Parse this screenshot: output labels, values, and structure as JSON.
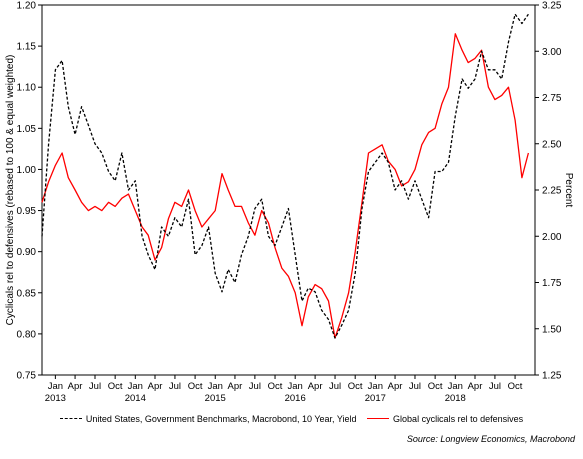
{
  "chart_data": {
    "type": "line",
    "left_axis": {
      "label": "Cyclicals rel to defensives (rebased to 100 & equal weighted)",
      "ylim": [
        0.75,
        1.2
      ],
      "ticks": [
        "0.75",
        "0.80",
        "0.85",
        "0.90",
        "0.95",
        "1.00",
        "1.05",
        "1.10",
        "1.15",
        "1.20"
      ]
    },
    "right_axis": {
      "label": "Percent",
      "ylim": [
        1.25,
        3.25
      ],
      "ticks": [
        "1.25",
        "1.50",
        "1.75",
        "2.00",
        "2.25",
        "2.50",
        "2.75",
        "3.00",
        "3.25"
      ]
    },
    "x_axis": {
      "range": [
        "2012-11-01",
        "2018-12-31"
      ],
      "month_ticks": [
        {
          "label": "Jan",
          "date": "2013-01-01",
          "year": "2013"
        },
        {
          "label": "Apr",
          "date": "2013-04-01"
        },
        {
          "label": "Jul",
          "date": "2013-07-01"
        },
        {
          "label": "Oct",
          "date": "2013-10-01"
        },
        {
          "label": "Jan",
          "date": "2014-01-01",
          "year": "2014"
        },
        {
          "label": "Apr",
          "date": "2014-04-01"
        },
        {
          "label": "Jul",
          "date": "2014-07-01"
        },
        {
          "label": "Oct",
          "date": "2014-10-01"
        },
        {
          "label": "Jan",
          "date": "2015-01-01",
          "year": "2015"
        },
        {
          "label": "Apr",
          "date": "2015-04-01"
        },
        {
          "label": "Jul",
          "date": "2015-07-01"
        },
        {
          "label": "Oct",
          "date": "2015-10-01"
        },
        {
          "label": "Jan",
          "date": "2016-01-01",
          "year": "2016"
        },
        {
          "label": "Apr",
          "date": "2016-04-01"
        },
        {
          "label": "Jul",
          "date": "2016-07-01"
        },
        {
          "label": "Oct",
          "date": "2016-10-01"
        },
        {
          "label": "Jan",
          "date": "2017-01-01",
          "year": "2017"
        },
        {
          "label": "Apr",
          "date": "2017-04-01"
        },
        {
          "label": "Jul",
          "date": "2017-07-01"
        },
        {
          "label": "Oct",
          "date": "2017-10-01"
        },
        {
          "label": "Jan",
          "date": "2018-01-01",
          "year": "2018"
        },
        {
          "label": "Apr",
          "date": "2018-04-01"
        },
        {
          "label": "Jul",
          "date": "2018-07-01"
        },
        {
          "label": "Oct",
          "date": "2018-10-01"
        }
      ]
    },
    "series": [
      {
        "name": "United States, Government Benchmarks, Macrobond, 10 Year, Yield",
        "axis": "right",
        "color": "#000000",
        "style": "dashed",
        "points": [
          [
            "2012-11-01",
            2.0
          ],
          [
            "2012-12-01",
            2.5
          ],
          [
            "2013-01-01",
            2.9
          ],
          [
            "2013-02-01",
            2.95
          ],
          [
            "2013-03-01",
            2.7
          ],
          [
            "2013-04-01",
            2.55
          ],
          [
            "2013-05-01",
            2.7
          ],
          [
            "2013-06-01",
            2.6
          ],
          [
            "2013-07-01",
            2.5
          ],
          [
            "2013-08-01",
            2.45
          ],
          [
            "2013-09-01",
            2.35
          ],
          [
            "2013-10-01",
            2.3
          ],
          [
            "2013-11-01",
            2.45
          ],
          [
            "2013-12-01",
            2.25
          ],
          [
            "2014-01-01",
            2.3
          ],
          [
            "2014-02-01",
            2.0
          ],
          [
            "2014-03-01",
            1.9
          ],
          [
            "2014-04-01",
            1.82
          ],
          [
            "2014-05-01",
            2.05
          ],
          [
            "2014-06-01",
            2.0
          ],
          [
            "2014-07-01",
            2.1
          ],
          [
            "2014-08-01",
            2.05
          ],
          [
            "2014-09-01",
            2.2
          ],
          [
            "2014-10-01",
            1.9
          ],
          [
            "2014-11-01",
            1.95
          ],
          [
            "2014-12-01",
            2.05
          ],
          [
            "2015-01-01",
            1.8
          ],
          [
            "2015-02-01",
            1.7
          ],
          [
            "2015-03-01",
            1.82
          ],
          [
            "2015-04-01",
            1.75
          ],
          [
            "2015-05-01",
            1.9
          ],
          [
            "2015-06-01",
            2.0
          ],
          [
            "2015-07-01",
            2.15
          ],
          [
            "2015-08-01",
            2.2
          ],
          [
            "2015-09-01",
            2.0
          ],
          [
            "2015-10-01",
            1.95
          ],
          [
            "2015-11-01",
            2.05
          ],
          [
            "2015-12-01",
            2.15
          ],
          [
            "2016-01-01",
            1.9
          ],
          [
            "2016-02-01",
            1.65
          ],
          [
            "2016-03-01",
            1.72
          ],
          [
            "2016-04-01",
            1.7
          ],
          [
            "2016-05-01",
            1.6
          ],
          [
            "2016-06-01",
            1.55
          ],
          [
            "2016-07-01",
            1.45
          ],
          [
            "2016-08-01",
            1.52
          ],
          [
            "2016-09-01",
            1.6
          ],
          [
            "2016-10-01",
            1.8
          ],
          [
            "2016-11-01",
            2.15
          ],
          [
            "2016-12-01",
            2.35
          ],
          [
            "2017-01-01",
            2.4
          ],
          [
            "2017-02-01",
            2.45
          ],
          [
            "2017-03-01",
            2.4
          ],
          [
            "2017-04-01",
            2.25
          ],
          [
            "2017-05-01",
            2.3
          ],
          [
            "2017-06-01",
            2.2
          ],
          [
            "2017-07-01",
            2.3
          ],
          [
            "2017-08-01",
            2.2
          ],
          [
            "2017-09-01",
            2.1
          ],
          [
            "2017-10-01",
            2.35
          ],
          [
            "2017-11-01",
            2.35
          ],
          [
            "2017-12-01",
            2.4
          ],
          [
            "2018-01-01",
            2.65
          ],
          [
            "2018-02-01",
            2.85
          ],
          [
            "2018-03-01",
            2.8
          ],
          [
            "2018-04-01",
            2.85
          ],
          [
            "2018-05-01",
            3.0
          ],
          [
            "2018-06-01",
            2.9
          ],
          [
            "2018-07-01",
            2.9
          ],
          [
            "2018-08-01",
            2.85
          ],
          [
            "2018-09-01",
            3.05
          ],
          [
            "2018-10-01",
            3.2
          ],
          [
            "2018-11-01",
            3.15
          ],
          [
            "2018-12-01",
            3.2
          ]
        ]
      },
      {
        "name": "Global cyclicals rel to defensives",
        "axis": "left",
        "color": "#ff0000",
        "style": "solid",
        "points": [
          [
            "2012-11-01",
            0.96
          ],
          [
            "2012-12-01",
            0.985
          ],
          [
            "2013-01-01",
            1.005
          ],
          [
            "2013-02-01",
            1.02
          ],
          [
            "2013-03-01",
            0.99
          ],
          [
            "2013-04-01",
            0.975
          ],
          [
            "2013-05-01",
            0.96
          ],
          [
            "2013-06-01",
            0.95
          ],
          [
            "2013-07-01",
            0.955
          ],
          [
            "2013-08-01",
            0.95
          ],
          [
            "2013-09-01",
            0.96
          ],
          [
            "2013-10-01",
            0.955
          ],
          [
            "2013-11-01",
            0.965
          ],
          [
            "2013-12-01",
            0.97
          ],
          [
            "2014-01-01",
            0.95
          ],
          [
            "2014-02-01",
            0.93
          ],
          [
            "2014-03-01",
            0.92
          ],
          [
            "2014-04-01",
            0.89
          ],
          [
            "2014-05-01",
            0.905
          ],
          [
            "2014-06-01",
            0.94
          ],
          [
            "2014-07-01",
            0.96
          ],
          [
            "2014-08-01",
            0.955
          ],
          [
            "2014-09-01",
            0.975
          ],
          [
            "2014-10-01",
            0.95
          ],
          [
            "2014-11-01",
            0.93
          ],
          [
            "2014-12-01",
            0.94
          ],
          [
            "2015-01-01",
            0.95
          ],
          [
            "2015-02-01",
            0.995
          ],
          [
            "2015-03-01",
            0.975
          ],
          [
            "2015-04-01",
            0.955
          ],
          [
            "2015-05-01",
            0.955
          ],
          [
            "2015-06-01",
            0.935
          ],
          [
            "2015-07-01",
            0.92
          ],
          [
            "2015-08-01",
            0.95
          ],
          [
            "2015-09-01",
            0.935
          ],
          [
            "2015-10-01",
            0.905
          ],
          [
            "2015-11-01",
            0.88
          ],
          [
            "2015-12-01",
            0.87
          ],
          [
            "2016-01-01",
            0.85
          ],
          [
            "2016-02-01",
            0.81
          ],
          [
            "2016-03-01",
            0.845
          ],
          [
            "2016-04-01",
            0.86
          ],
          [
            "2016-05-01",
            0.855
          ],
          [
            "2016-06-01",
            0.84
          ],
          [
            "2016-07-01",
            0.795
          ],
          [
            "2016-08-01",
            0.82
          ],
          [
            "2016-09-01",
            0.85
          ],
          [
            "2016-10-01",
            0.9
          ],
          [
            "2016-11-01",
            0.96
          ],
          [
            "2016-12-01",
            1.02
          ],
          [
            "2017-01-01",
            1.025
          ],
          [
            "2017-02-01",
            1.03
          ],
          [
            "2017-03-01",
            1.01
          ],
          [
            "2017-04-01",
            1.0
          ],
          [
            "2017-05-01",
            0.98
          ],
          [
            "2017-06-01",
            0.985
          ],
          [
            "2017-07-01",
            1.0
          ],
          [
            "2017-08-01",
            1.03
          ],
          [
            "2017-09-01",
            1.045
          ],
          [
            "2017-10-01",
            1.05
          ],
          [
            "2017-11-01",
            1.08
          ],
          [
            "2017-12-01",
            1.1
          ],
          [
            "2018-01-01",
            1.165
          ],
          [
            "2018-02-01",
            1.145
          ],
          [
            "2018-03-01",
            1.13
          ],
          [
            "2018-04-01",
            1.135
          ],
          [
            "2018-05-01",
            1.145
          ],
          [
            "2018-06-01",
            1.1
          ],
          [
            "2018-07-01",
            1.085
          ],
          [
            "2018-08-01",
            1.09
          ],
          [
            "2018-09-01",
            1.1
          ],
          [
            "2018-10-01",
            1.06
          ],
          [
            "2018-11-01",
            0.99
          ],
          [
            "2018-12-01",
            1.02
          ]
        ]
      }
    ],
    "legend": {
      "placement": "bottom",
      "entries": [
        "United States, Government Benchmarks, Macrobond, 10 Year, Yield",
        "Global cyclicals rel to defensives"
      ]
    },
    "source": "Source: Longview Economics, Macrobond",
    "grid": false
  }
}
